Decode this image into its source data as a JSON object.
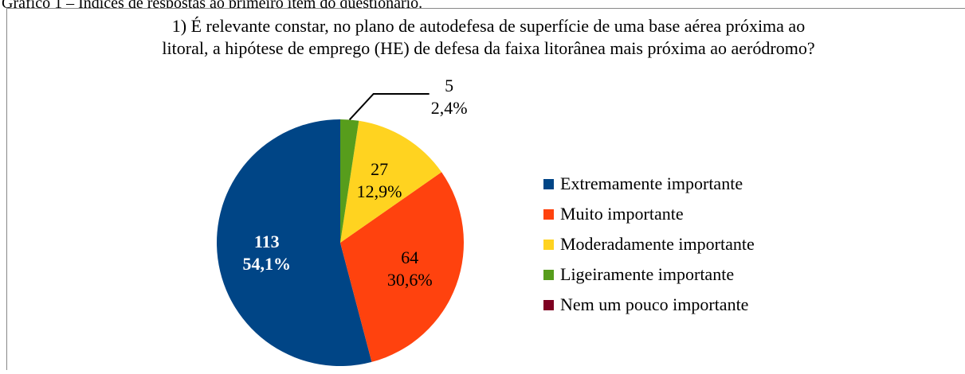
{
  "caption": "Gráfico 1 – Índices de respostas ao primeiro item do questionário.",
  "chart_data": {
    "type": "pie",
    "title": [
      "1) É relevante constar, no plano de autodefesa de superfície de uma base aérea próxima ao",
      "litoral, a hipótese de emprego (HE) de defesa da faixa litorânea mais próxima ao aeródromo?"
    ],
    "categories": [
      "Extremamente importante",
      "Muito importante",
      "Moderadamente importante",
      "Ligeiramente importante",
      "Nem um pouco importante"
    ],
    "values": [
      54.1,
      30.6,
      12.9,
      2.4,
      0
    ],
    "value_labels": [
      "54,1%",
      "30,6%",
      "12,9%",
      "2,4%",
      null
    ],
    "counts": [
      113,
      64,
      27,
      5,
      null
    ],
    "colors": [
      "#004586",
      "#ff420e",
      "#ffd320",
      "#579d1c",
      "#7e0021"
    ],
    "legend": "right"
  }
}
